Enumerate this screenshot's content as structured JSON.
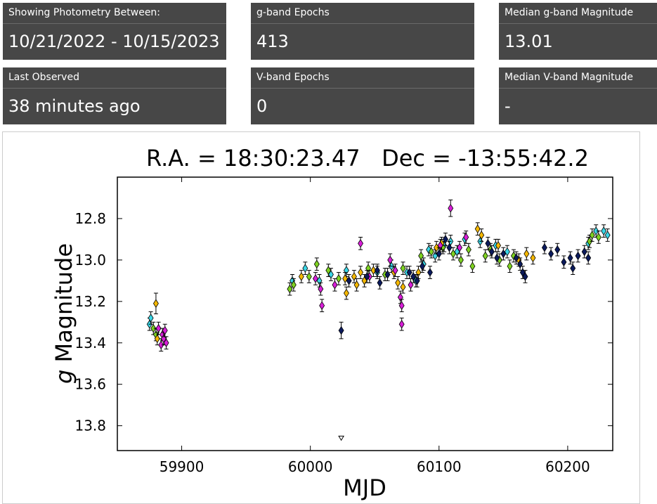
{
  "cards": [
    {
      "label": "Showing Photometry Between:",
      "value": "10/21/2022 - 10/15/2023"
    },
    {
      "label": "g-band Epochs",
      "value": "413"
    },
    {
      "label": "Median g-band Magnitude",
      "value": "13.01"
    },
    {
      "label": "Last Observed",
      "value": "38 minutes ago"
    },
    {
      "label": "V-band Epochs",
      "value": "0"
    },
    {
      "label": "Median V-band Magnitude",
      "value": "-"
    }
  ],
  "chart_data": {
    "type": "scatter",
    "title": "R.A. = 18:30:23.47   Dec = -13:55:42.2",
    "xlabel": "MJD",
    "ylabel_italic": "g",
    "ylabel_rest": " Magnitude",
    "xlim": [
      59850,
      60235
    ],
    "ylim": [
      13.92,
      12.6
    ],
    "y_inverted": true,
    "x_ticks": [
      59900,
      60000,
      60100,
      60200
    ],
    "x_tick_labels": [
      "59900",
      "60000",
      "60100",
      "60200"
    ],
    "y_ticks": [
      12.8,
      13.0,
      13.2,
      13.4,
      13.6,
      13.8
    ],
    "y_tick_labels": [
      "12.8",
      "13.0",
      "13.2",
      "13.4",
      "13.6",
      "13.8"
    ],
    "grid": false,
    "colors": {
      "cyan": "#3ad6e6",
      "green": "#7ed321",
      "orange": "#f5b800",
      "magenta": "#d81ed8",
      "navy": "#0b1a5c"
    },
    "series": [
      {
        "color": "cyan",
        "points": [
          [
            59875,
            13.31,
            0.03
          ],
          [
            59876,
            13.28,
            0.03
          ],
          [
            59986,
            13.1,
            0.03
          ],
          [
            59996,
            13.04,
            0.03
          ],
          [
            60007,
            13.1,
            0.03
          ],
          [
            60016,
            13.07,
            0.03
          ],
          [
            60028,
            13.05,
            0.03
          ],
          [
            60052,
            13.06,
            0.03
          ],
          [
            60063,
            13.03,
            0.03
          ],
          [
            60075,
            13.06,
            0.03
          ],
          [
            60082,
            13.1,
            0.03
          ],
          [
            60088,
            13.02,
            0.03
          ],
          [
            60092,
            12.95,
            0.03
          ],
          [
            60097,
            12.98,
            0.03
          ],
          [
            60104,
            12.93,
            0.03
          ],
          [
            60109,
            12.91,
            0.03
          ],
          [
            60114,
            12.96,
            0.03
          ],
          [
            60120,
            12.9,
            0.03
          ],
          [
            60132,
            12.91,
            0.03
          ],
          [
            60144,
            12.93,
            0.03
          ],
          [
            60153,
            12.96,
            0.03
          ],
          [
            60216,
            12.92,
            0.03
          ],
          [
            60222,
            12.86,
            0.03
          ],
          [
            60228,
            12.86,
            0.03
          ],
          [
            60231,
            12.88,
            0.03
          ]
        ]
      },
      {
        "color": "green",
        "points": [
          [
            59878,
            13.33,
            0.03
          ],
          [
            59880,
            13.36,
            0.03
          ],
          [
            59984,
            13.14,
            0.03
          ],
          [
            59987,
            13.12,
            0.03
          ],
          [
            59999,
            13.08,
            0.03
          ],
          [
            60005,
            13.02,
            0.03
          ],
          [
            60014,
            13.05,
            0.03
          ],
          [
            60022,
            13.09,
            0.03
          ],
          [
            60045,
            13.04,
            0.03
          ],
          [
            60058,
            13.07,
            0.03
          ],
          [
            60072,
            13.04,
            0.03
          ],
          [
            60086,
            12.98,
            0.03
          ],
          [
            60094,
            12.96,
            0.03
          ],
          [
            60103,
            12.94,
            0.03
          ],
          [
            60111,
            12.97,
            0.03
          ],
          [
            60117,
            13.0,
            0.03
          ],
          [
            60123,
            12.95,
            0.03
          ],
          [
            60126,
            13.03,
            0.03
          ],
          [
            60136,
            12.98,
            0.03
          ],
          [
            60140,
            12.95,
            0.03
          ],
          [
            60147,
            13.0,
            0.03
          ],
          [
            60155,
            13.03,
            0.03
          ],
          [
            60158,
            12.98,
            0.03
          ],
          [
            60217,
            12.91,
            0.03
          ],
          [
            60219,
            12.88,
            0.03
          ],
          [
            60224,
            12.89,
            0.03
          ]
        ]
      },
      {
        "color": "orange",
        "points": [
          [
            59880,
            13.21,
            0.05
          ],
          [
            59881,
            13.38,
            0.03
          ],
          [
            59993,
            13.08,
            0.03
          ],
          [
            60027,
            13.09,
            0.03
          ],
          [
            60028,
            13.16,
            0.03
          ],
          [
            60034,
            13.08,
            0.03
          ],
          [
            60036,
            13.12,
            0.03
          ],
          [
            60039,
            13.06,
            0.03
          ],
          [
            60042,
            13.1,
            0.03
          ],
          [
            60049,
            13.05,
            0.03
          ],
          [
            60065,
            13.06,
            0.03
          ],
          [
            60068,
            13.11,
            0.03
          ],
          [
            60072,
            13.13,
            0.03
          ],
          [
            60084,
            13.06,
            0.03
          ],
          [
            60098,
            12.94,
            0.03
          ],
          [
            60102,
            12.92,
            0.03
          ],
          [
            60130,
            12.85,
            0.03
          ],
          [
            60133,
            12.88,
            0.03
          ],
          [
            60146,
            12.93,
            0.03
          ],
          [
            60162,
            13.0,
            0.03
          ],
          [
            60168,
            12.97,
            0.03
          ],
          [
            60173,
            12.99,
            0.03
          ]
        ]
      },
      {
        "color": "magenta",
        "points": [
          [
            59882,
            13.33,
            0.03
          ],
          [
            59884,
            13.41,
            0.03
          ],
          [
            59885,
            13.36,
            0.03
          ],
          [
            59886,
            13.38,
            0.03
          ],
          [
            59887,
            13.34,
            0.03
          ],
          [
            59888,
            13.4,
            0.03
          ],
          [
            60004,
            13.09,
            0.03
          ],
          [
            60008,
            13.14,
            0.03
          ],
          [
            60009,
            13.22,
            0.03
          ],
          [
            60019,
            13.12,
            0.03
          ],
          [
            60039,
            12.92,
            0.03
          ],
          [
            60046,
            13.08,
            0.03
          ],
          [
            60062,
            13.0,
            0.03
          ],
          [
            60066,
            13.05,
            0.03
          ],
          [
            60070,
            13.18,
            0.03
          ],
          [
            60071,
            13.22,
            0.03
          ],
          [
            60071,
            13.31,
            0.03
          ],
          [
            60078,
            13.12,
            0.03
          ],
          [
            60101,
            12.93,
            0.03
          ],
          [
            60109,
            12.75,
            0.04
          ],
          [
            60116,
            12.94,
            0.03
          ],
          [
            60121,
            12.89,
            0.03
          ]
        ]
      },
      {
        "color": "navy",
        "points": [
          [
            60024,
            13.34,
            0.04
          ],
          [
            60030,
            13.1,
            0.03
          ],
          [
            60044,
            13.08,
            0.03
          ],
          [
            60052,
            13.05,
            0.03
          ],
          [
            60054,
            13.11,
            0.03
          ],
          [
            60060,
            13.07,
            0.03
          ],
          [
            60077,
            13.06,
            0.03
          ],
          [
            60080,
            13.08,
            0.03
          ],
          [
            60083,
            13.1,
            0.03
          ],
          [
            60087,
            13.03,
            0.03
          ],
          [
            60093,
            13.06,
            0.03
          ],
          [
            60100,
            12.97,
            0.03
          ],
          [
            60105,
            12.9,
            0.03
          ],
          [
            60108,
            12.94,
            0.03
          ],
          [
            60138,
            12.92,
            0.03
          ],
          [
            60141,
            12.96,
            0.03
          ],
          [
            60145,
            12.99,
            0.03
          ],
          [
            60150,
            12.97,
            0.03
          ],
          [
            60160,
            12.99,
            0.03
          ],
          [
            60163,
            13.02,
            0.03
          ],
          [
            60165,
            13.06,
            0.03
          ],
          [
            60167,
            13.08,
            0.03
          ],
          [
            60182,
            12.94,
            0.03
          ],
          [
            60187,
            12.97,
            0.03
          ],
          [
            60192,
            12.95,
            0.03
          ],
          [
            60197,
            13.01,
            0.03
          ],
          [
            60202,
            12.99,
            0.03
          ],
          [
            60204,
            13.04,
            0.03
          ],
          [
            60208,
            12.98,
            0.03
          ],
          [
            60213,
            12.96,
            0.03
          ],
          [
            60216,
            12.99,
            0.03
          ]
        ]
      }
    ],
    "upper_limits": [
      [
        60024,
        13.86
      ]
    ]
  }
}
